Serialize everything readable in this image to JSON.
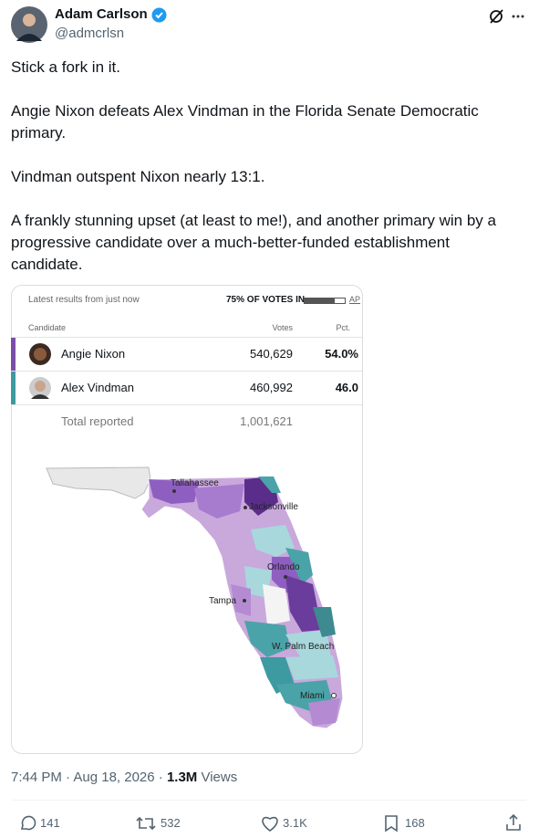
{
  "author": {
    "name": "Adam Carlson",
    "handle": "@admcrlsn"
  },
  "tweet": {
    "paragraphs": [
      "Stick a fork in it.",
      "Angie Nixon defeats Alex Vindman in the Florida Senate Democratic primary.",
      "Vindman outspent Nixon nearly 13:1.",
      "A frankly stunning upset (at least to me!), and another primary win by a progressive candidate over a much-better-funded establishment candidate."
    ]
  },
  "card": {
    "header": {
      "latest": "Latest results from just now",
      "votes_in": "75% OF VOTES IN",
      "source": "AP"
    },
    "columns": [
      "Candidate",
      "Votes",
      "Pct."
    ],
    "rows": [
      {
        "name": "Angie Nixon",
        "votes": "540,629",
        "pct": "54.0%"
      },
      {
        "name": "Alex Vindman",
        "votes": "460,992",
        "pct": "46.0"
      }
    ],
    "total": {
      "label": "Total reported",
      "votes": "1,001,621"
    },
    "map_labels": [
      "Tallahassee",
      "Jacksonville",
      "Orlando",
      "Tampa",
      "W. Palm Beach",
      "Miami"
    ]
  },
  "meta": {
    "timestamp": "7:44 PM · Aug 18, 2026 ·",
    "views": "1.3M",
    "views_label": "Views"
  },
  "actions": {
    "replies": "141",
    "reposts": "532",
    "likes": "3.1K",
    "bookmarks": "168"
  }
}
